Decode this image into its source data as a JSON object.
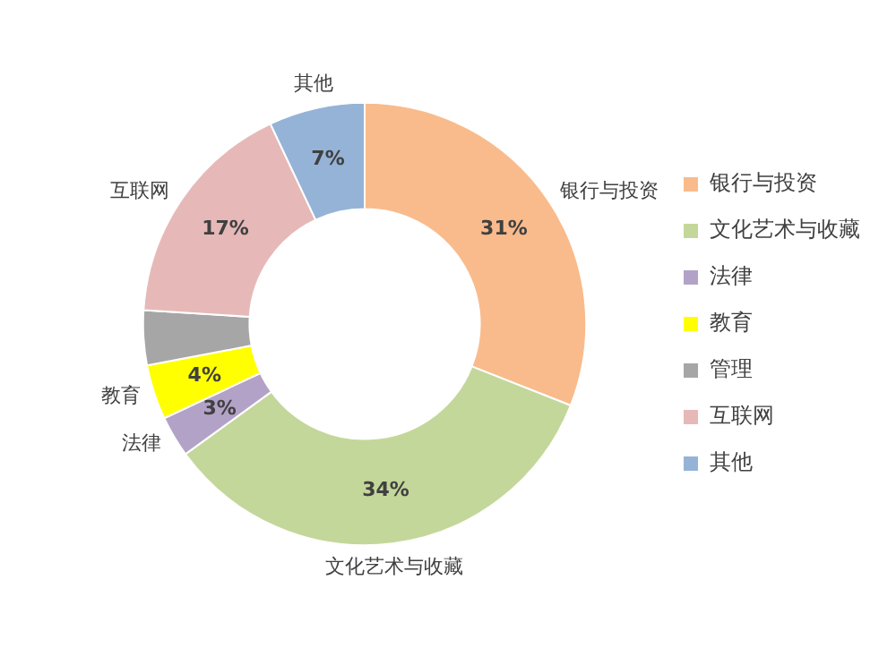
{
  "chart_data": {
    "type": "donut",
    "categories": [
      "银行与投资",
      "文化艺术与收藏",
      "法律",
      "教育",
      "管理",
      "互联网",
      "其他"
    ],
    "values": [
      31,
      34,
      3,
      4,
      4,
      17,
      7
    ],
    "colors": [
      "#f9bb8c",
      "#c4d79b",
      "#b3a2c7",
      "#ffff00",
      "#a6a6a6",
      "#e6b9b8",
      "#95b3d7"
    ],
    "value_labels": [
      "31%",
      "34%",
      "3%",
      "4%",
      null,
      "17%",
      "7%"
    ],
    "legend": "right"
  }
}
